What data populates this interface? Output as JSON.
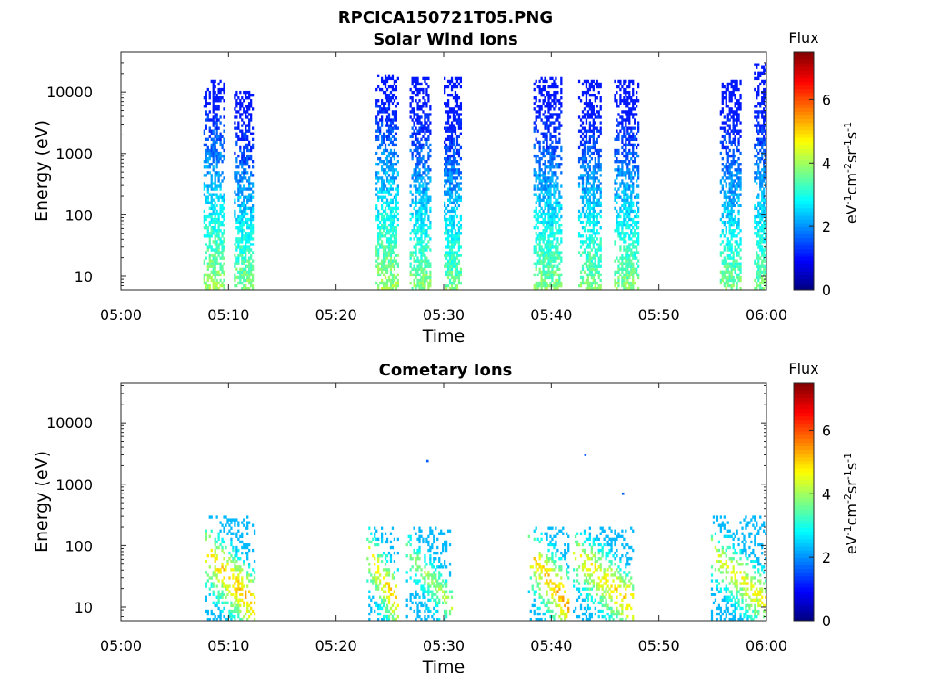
{
  "figure_title": "RPCICA150721T05.PNG",
  "chart_data": [
    {
      "type": "heatmap",
      "title": "Solar Wind Ions",
      "xlabel": "Time",
      "ylabel": "Energy (eV)",
      "x_ticks": [
        "05:00",
        "05:10",
        "05:20",
        "05:30",
        "05:40",
        "05:50",
        "06:00"
      ],
      "y_ticks": [
        "10",
        "100",
        "1000",
        "10000"
      ],
      "xlim": [
        "05:00",
        "06:00"
      ],
      "ylim": [
        6,
        45000
      ],
      "y_scale": "log",
      "colorbar": {
        "label": "Flux",
        "unit_label": "eV-1cm-2sr-1s-1",
        "ticks": [
          "0",
          "2",
          "4",
          "6"
        ],
        "range": [
          0,
          7.5
        ],
        "colormap": "jet"
      },
      "bursts": [
        {
          "start": "05:07:40",
          "end": "05:09:40",
          "emin": 6,
          "emax": 15000,
          "peak_low": 4.0
        },
        {
          "start": "05:10:30",
          "end": "05:12:20",
          "emin": 6,
          "emax": 10000,
          "peak_low": 3.8
        },
        {
          "start": "05:23:40",
          "end": "05:25:50",
          "emin": 6,
          "emax": 18000,
          "peak_low": 4.0
        },
        {
          "start": "05:26:50",
          "end": "05:28:50",
          "emin": 6,
          "emax": 17000,
          "peak_low": 3.8
        },
        {
          "start": "05:30:00",
          "end": "05:31:40",
          "emin": 6,
          "emax": 17000,
          "peak_low": 3.7
        },
        {
          "start": "05:38:20",
          "end": "05:41:00",
          "emin": 6,
          "emax": 17000,
          "peak_low": 3.8
        },
        {
          "start": "05:42:30",
          "end": "05:44:40",
          "emin": 6,
          "emax": 15000,
          "peak_low": 3.8
        },
        {
          "start": "05:45:50",
          "end": "05:48:10",
          "emin": 6,
          "emax": 15000,
          "peak_low": 3.8
        },
        {
          "start": "05:55:40",
          "end": "05:57:40",
          "emin": 6,
          "emax": 15000,
          "peak_low": 3.7
        },
        {
          "start": "05:58:50",
          "end": "06:00:20",
          "emin": 6,
          "emax": 28000,
          "peak_low": 3.7
        }
      ]
    },
    {
      "type": "heatmap",
      "title": "Cometary Ions",
      "xlabel": "Time",
      "ylabel": "Energy (eV)",
      "x_ticks": [
        "05:00",
        "05:10",
        "05:20",
        "05:30",
        "05:40",
        "05:50",
        "06:00"
      ],
      "y_ticks": [
        "10",
        "100",
        "1000",
        "10000"
      ],
      "xlim": [
        "05:00",
        "06:00"
      ],
      "ylim": [
        6,
        45000
      ],
      "y_scale": "log",
      "colorbar": {
        "label": "Flux",
        "unit_label": "eV-1cm-2sr-1s-1",
        "ticks": [
          "0",
          "2",
          "4",
          "6"
        ],
        "range": [
          0,
          7.5
        ],
        "colormap": "jet"
      },
      "bursts": [
        {
          "start": "05:07:50",
          "end": "05:12:30",
          "emin": 6,
          "emax": 300,
          "peak_low": 5.5
        },
        {
          "start": "05:22:50",
          "end": "05:25:50",
          "emin": 6,
          "emax": 200,
          "peak_low": 5.3
        },
        {
          "start": "05:26:30",
          "end": "05:30:50",
          "emin": 6,
          "emax": 200,
          "peak_low": 4.5
        },
        {
          "start": "05:37:50",
          "end": "05:41:40",
          "emin": 6,
          "emax": 200,
          "peak_low": 5.6
        },
        {
          "start": "05:42:00",
          "end": "05:47:40",
          "emin": 6,
          "emax": 200,
          "peak_low": 5.3
        },
        {
          "start": "05:54:50",
          "end": "06:00:20",
          "emin": 6,
          "emax": 300,
          "peak_low": 5.0
        }
      ],
      "isolated_points": [
        {
          "time": "05:28:30",
          "energy": 2400
        },
        {
          "time": "05:43:10",
          "energy": 3000
        },
        {
          "time": "05:46:40",
          "energy": 700
        }
      ]
    }
  ]
}
